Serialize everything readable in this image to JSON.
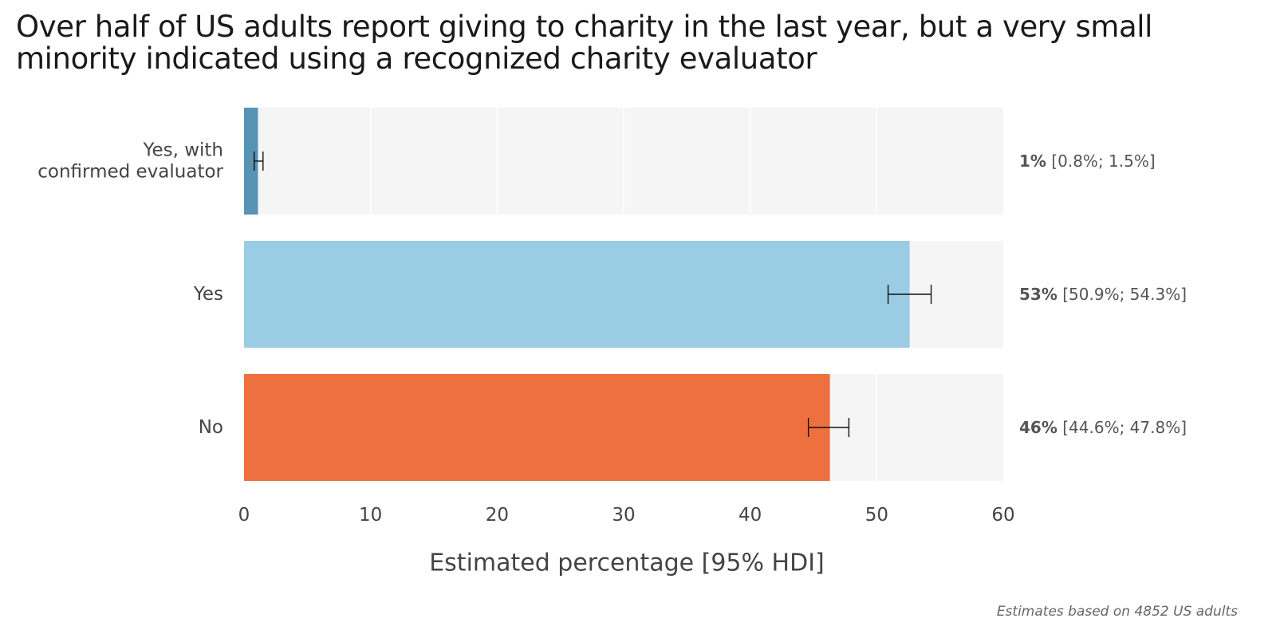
{
  "chart_data": {
    "type": "bar",
    "orientation": "horizontal",
    "title": "Over half of US adults report giving to charity in the last year, but a very small minority indicated using a recognized charity evaluator",
    "xlabel": "Estimated percentage [95% HDI]",
    "ylabel": "",
    "xlim": [
      0,
      60
    ],
    "xticks": [
      0,
      10,
      20,
      30,
      40,
      50,
      60
    ],
    "grid": true,
    "categories": [
      {
        "label_lines": [
          "Yes, with",
          "confirmed evaluator"
        ],
        "value": 1.1,
        "ci": [
          0.8,
          1.5
        ],
        "value_label": "1%",
        "ci_label": "[0.8%; 1.5%]",
        "color": "#5693B5"
      },
      {
        "label_lines": [
          "Yes"
        ],
        "value": 52.6,
        "ci": [
          50.9,
          54.3
        ],
        "value_label": "53%",
        "ci_label": "[50.9%; 54.3%]",
        "color": "#9ACCE4"
      },
      {
        "label_lines": [
          "No"
        ],
        "value": 46.3,
        "ci": [
          44.6,
          47.8
        ],
        "value_label": "46%",
        "ci_label": "[44.6%; 47.8%]",
        "color": "#EE703E"
      }
    ],
    "caption": "Estimates based on 4852 US adults"
  }
}
